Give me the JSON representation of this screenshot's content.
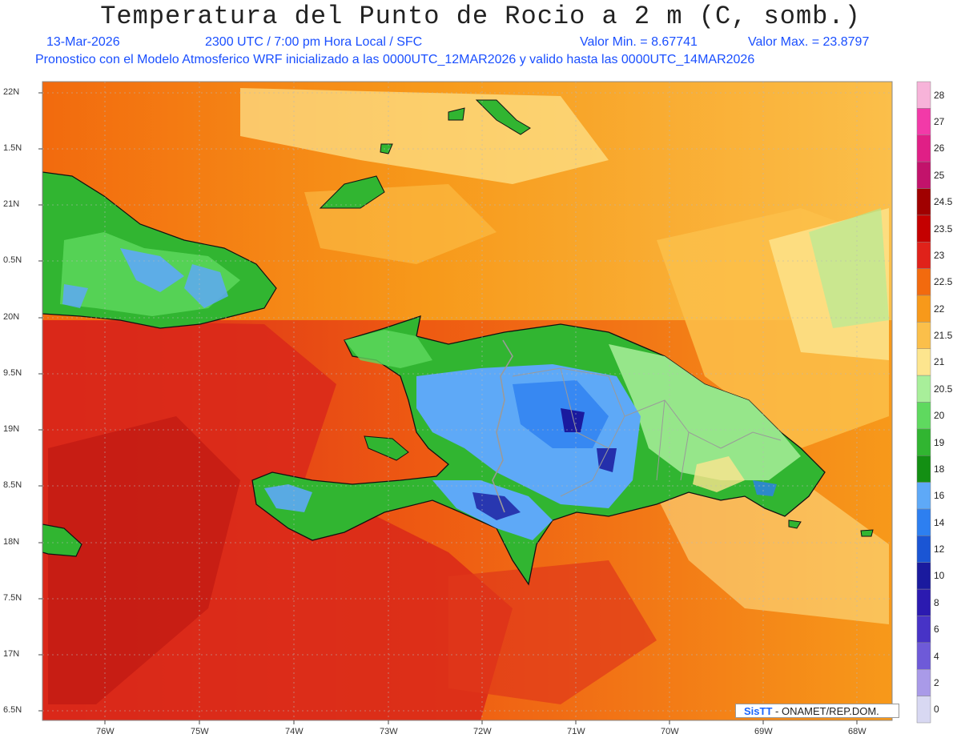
{
  "title": "Temperatura del Punto de Rocio a 2 m (C, somb.)",
  "subtitle": {
    "date": "13-Mar-2026",
    "time": "2300 UTC / 7:00 pm Hora Local / SFC",
    "min": "Valor Min. = 8.67741",
    "max": "Valor Max. = 23.8797",
    "model": "Pronostico con el Modelo Atmosferico WRF inicializado a las 0000UTC_12MAR2026 y valido hasta las  0000UTC_14MAR2026"
  },
  "axes": {
    "lat_labels": [
      "22N",
      "1.5N",
      "21N",
      "0.5N",
      "20N",
      "9.5N",
      "19N",
      "8.5N",
      "18N",
      "7.5N",
      "17N",
      "6.5N"
    ],
    "lon_labels": [
      "76W",
      "75W",
      "74W",
      "73W",
      "72W",
      "71W",
      "70W",
      "69W",
      "68W"
    ]
  },
  "colorbar": {
    "labels": [
      "28",
      "27",
      "26",
      "25",
      "24.5",
      "23.5",
      "23",
      "22.5",
      "22",
      "21.5",
      "21",
      "20.5",
      "20",
      "19",
      "18",
      "16",
      "14",
      "12",
      "10",
      "8",
      "6",
      "4",
      "2",
      "0"
    ],
    "colors": [
      "#f7b3d9",
      "#f23aa8",
      "#e01f86",
      "#c2136b",
      "#a00000",
      "#c40000",
      "#e0221a",
      "#f26a0e",
      "#f7991a",
      "#fbbf4a",
      "#fde58e",
      "#a8ef9a",
      "#5fd95f",
      "#31b531",
      "#138f13",
      "#5ea9f7",
      "#2d7ff0",
      "#1a55d4",
      "#1a1a9e",
      "#2b1ab0",
      "#4733c6",
      "#6e5ad8",
      "#a99ae8",
      "#d8d8f2"
    ]
  },
  "credit": {
    "logo": "SisTT",
    "text": " - ONAMET/REP.DOM."
  }
}
